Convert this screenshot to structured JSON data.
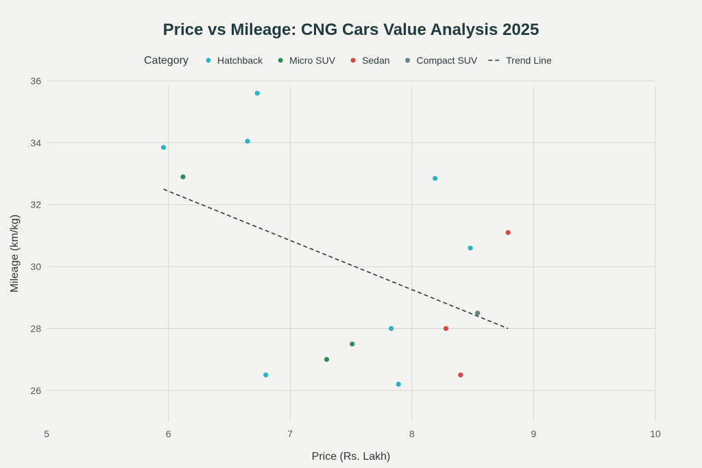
{
  "chart_data": {
    "type": "scatter",
    "title": "Price vs Mileage: CNG Cars Value Analysis 2025",
    "xlabel": "Price (Rs. Lakh)",
    "ylabel": "Mileage (km/kg)",
    "xlim": [
      5,
      10
    ],
    "ylim": [
      25,
      36
    ],
    "xticks": [
      5,
      6,
      7,
      8,
      9,
      10
    ],
    "yticks": [
      26,
      28,
      30,
      32,
      34,
      36
    ],
    "legend_title": "Category",
    "series": [
      {
        "name": "Hatchback",
        "color": "#2ab3c6",
        "points": [
          [
            5.96,
            33.85
          ],
          [
            6.65,
            34.05
          ],
          [
            6.73,
            35.6
          ],
          [
            6.8,
            26.5
          ],
          [
            7.83,
            28.0
          ],
          [
            7.89,
            26.2
          ],
          [
            8.19,
            32.85
          ],
          [
            8.48,
            30.6
          ]
        ]
      },
      {
        "name": "Micro SUV",
        "color": "#2e8b57",
        "points": [
          [
            6.12,
            32.9
          ],
          [
            7.3,
            27.0
          ],
          [
            7.51,
            27.5
          ]
        ]
      },
      {
        "name": "Sedan",
        "color": "#d9473f",
        "points": [
          [
            8.79,
            31.1
          ],
          [
            8.28,
            28.0
          ],
          [
            8.4,
            26.5
          ]
        ]
      },
      {
        "name": "Compact SUV",
        "color": "#5f8585",
        "points": [
          [
            8.54,
            28.5
          ]
        ]
      }
    ],
    "trend_line": {
      "name": "Trend Line",
      "color": "#2a3a3c",
      "points": [
        [
          5.96,
          32.5
        ],
        [
          8.79,
          28.0
        ]
      ]
    }
  }
}
